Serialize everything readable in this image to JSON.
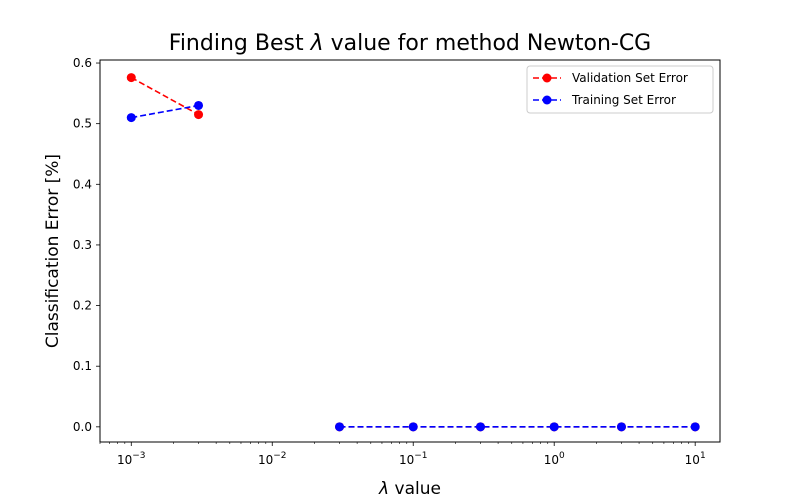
{
  "chart_data": {
    "type": "line",
    "title_parts": [
      "Finding Best ",
      "λ",
      " value for method Newton-CG"
    ],
    "xlabel_parts": [
      "λ",
      " value"
    ],
    "ylabel": "Classification Error [%]",
    "xscale": "log",
    "xlim": [
      0.0006,
      15
    ],
    "ylim": [
      -0.025,
      0.605
    ],
    "xticks": [
      {
        "value": 0.001,
        "base": "10",
        "exp": "−3"
      },
      {
        "value": 0.01,
        "base": "10",
        "exp": "−2"
      },
      {
        "value": 0.1,
        "base": "10",
        "exp": "−1"
      },
      {
        "value": 1,
        "base": "10",
        "exp": "0"
      },
      {
        "value": 10,
        "base": "10",
        "exp": "1"
      }
    ],
    "yticks": [
      {
        "value": 0.0,
        "label": "0.0"
      },
      {
        "value": 0.1,
        "label": "0.1"
      },
      {
        "value": 0.2,
        "label": "0.2"
      },
      {
        "value": 0.3,
        "label": "0.3"
      },
      {
        "value": 0.4,
        "label": "0.4"
      },
      {
        "value": 0.5,
        "label": "0.5"
      },
      {
        "value": 0.6,
        "label": "0.6"
      }
    ],
    "legend_position": "top-right",
    "series": [
      {
        "name": "Validation Set Error",
        "color": "#ff0000",
        "segments": [
          {
            "x": [
              0.001,
              0.003
            ],
            "y": [
              0.576,
              0.515
            ]
          },
          {
            "x": [
              0.03,
              0.1,
              0.3,
              1,
              3,
              10
            ],
            "y": [
              0.0,
              0.0,
              0.0,
              0.0,
              0.0,
              0.0
            ]
          }
        ]
      },
      {
        "name": "Training Set Error",
        "color": "#0000ff",
        "segments": [
          {
            "x": [
              0.001,
              0.003
            ],
            "y": [
              0.51,
              0.53
            ]
          },
          {
            "x": [
              0.03,
              0.1,
              0.3,
              1,
              3,
              10
            ],
            "y": [
              0.0,
              0.0,
              0.0,
              0.0,
              0.0,
              0.0
            ]
          }
        ]
      }
    ]
  }
}
